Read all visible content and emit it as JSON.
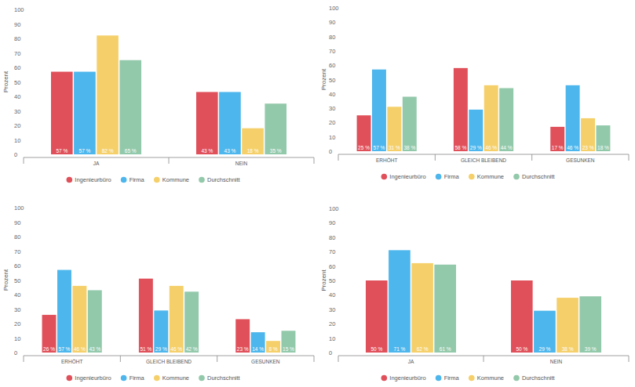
{
  "chart_data": [
    {
      "type": "bar",
      "ylabel": "Prozent",
      "categories": [
        "JA",
        "NEIN"
      ],
      "series": [
        {
          "name": "Ingenieurbüro",
          "color": "#e0505a",
          "values": [
            57,
            43
          ],
          "value_labels": [
            "57 %",
            "43 %"
          ]
        },
        {
          "name": "Firma",
          "color": "#4db6ec",
          "values": [
            57,
            43
          ],
          "value_labels": [
            "57 %",
            "43 %"
          ]
        },
        {
          "name": "Kommune",
          "color": "#f5d06a",
          "values": [
            82,
            18
          ],
          "value_labels": [
            "82 %",
            "18 %"
          ]
        },
        {
          "name": "Durchschnitt",
          "color": "#93c9ab",
          "values": [
            65,
            35
          ],
          "value_labels": [
            "65 %",
            "35 %"
          ]
        }
      ],
      "ylim": [
        0,
        100
      ],
      "yticks": [
        0,
        10,
        20,
        30,
        40,
        50,
        60,
        70,
        80,
        90,
        100
      ],
      "grid": false,
      "data_labels": true,
      "legend": "bottom"
    },
    {
      "type": "bar",
      "ylabel": "Prozent",
      "categories": [
        "ERHÖHT",
        "GLEICH BLEIBEND",
        "GESUNKEN"
      ],
      "series": [
        {
          "name": "Ingenieurbüro",
          "color": "#e0505a",
          "values": [
            25,
            58,
            17
          ],
          "value_labels": [
            "25 %",
            "58 %",
            "17 %"
          ]
        },
        {
          "name": "Firma",
          "color": "#4db6ec",
          "values": [
            57,
            29,
            46
          ],
          "value_labels": [
            "57 %",
            "29 %",
            "46 %"
          ]
        },
        {
          "name": "Kommune",
          "color": "#f5d06a",
          "values": [
            31,
            46,
            23
          ],
          "value_labels": [
            "31 %",
            "46 %",
            "23 %"
          ]
        },
        {
          "name": "Durchschnitt",
          "color": "#93c9ab",
          "values": [
            38,
            44,
            18
          ],
          "value_labels": [
            "38 %",
            "44 %",
            "18 %"
          ]
        }
      ],
      "ylim": [
        0,
        100
      ],
      "yticks": [
        0,
        10,
        20,
        30,
        40,
        50,
        60,
        70,
        80,
        90,
        100
      ],
      "grid": false,
      "data_labels": true,
      "legend": "bottom"
    },
    {
      "type": "bar",
      "ylabel": "Prozent",
      "categories": [
        "ERHÖHT",
        "GLEICH BLEIBEND",
        "GESUNKEN"
      ],
      "series": [
        {
          "name": "Ingenieurbüro",
          "color": "#e0505a",
          "values": [
            26,
            51,
            23
          ],
          "value_labels": [
            "26 %",
            "51 %",
            "23 %"
          ]
        },
        {
          "name": "Firma",
          "color": "#4db6ec",
          "values": [
            57,
            29,
            14
          ],
          "value_labels": [
            "57 %",
            "29 %",
            "14 %"
          ]
        },
        {
          "name": "Kommune",
          "color": "#f5d06a",
          "values": [
            46,
            46,
            8
          ],
          "value_labels": [
            "46 %",
            "46 %",
            "8 %"
          ]
        },
        {
          "name": "Durchschnitt",
          "color": "#93c9ab",
          "values": [
            43,
            42,
            15
          ],
          "value_labels": [
            "43 %",
            "42 %",
            "15 %"
          ]
        }
      ],
      "ylim": [
        0,
        100
      ],
      "yticks": [
        0,
        10,
        20,
        30,
        40,
        50,
        60,
        70,
        80,
        90,
        100
      ],
      "grid": false,
      "data_labels": true,
      "legend": "bottom"
    },
    {
      "type": "bar",
      "ylabel": "Prozent",
      "categories": [
        "JA",
        "NEIN"
      ],
      "series": [
        {
          "name": "Ingenieurbüro",
          "color": "#e0505a",
          "values": [
            50,
            50
          ],
          "value_labels": [
            "50 %",
            "50 %"
          ]
        },
        {
          "name": "Firma",
          "color": "#4db6ec",
          "values": [
            71,
            29
          ],
          "value_labels": [
            "71 %",
            "29 %"
          ]
        },
        {
          "name": "Kommune",
          "color": "#f5d06a",
          "values": [
            62,
            38
          ],
          "value_labels": [
            "62 %",
            "38 %"
          ]
        },
        {
          "name": "Durchschnitt",
          "color": "#93c9ab",
          "values": [
            61,
            39
          ],
          "value_labels": [
            "61 %",
            "39 %"
          ]
        }
      ],
      "ylim": [
        0,
        100
      ],
      "yticks": [
        0,
        10,
        20,
        30,
        40,
        50,
        60,
        70,
        80,
        90,
        100
      ],
      "grid": false,
      "data_labels": true,
      "legend": "bottom"
    }
  ]
}
